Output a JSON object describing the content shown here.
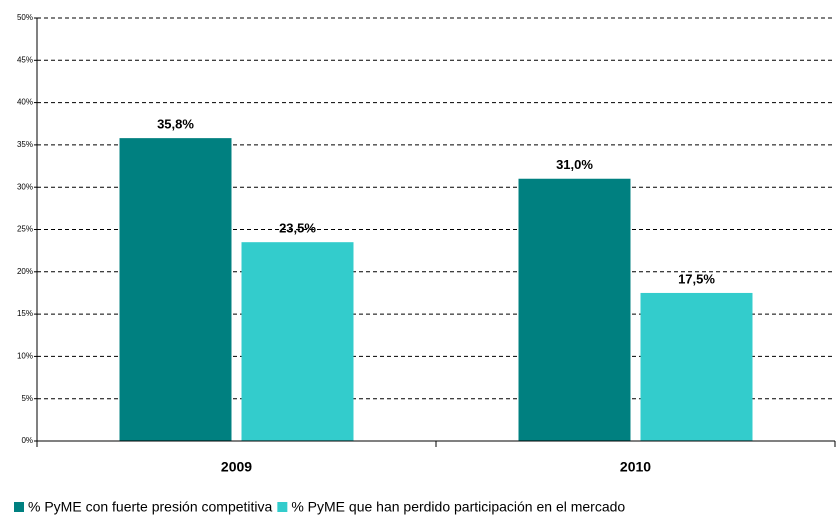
{
  "chart_data": {
    "type": "bar",
    "categories": [
      "2009",
      "2010"
    ],
    "series": [
      {
        "name": "% PyME con fuerte presión competitiva",
        "color": "#008080",
        "values": [
          35.8,
          31.0
        ],
        "value_labels": [
          "35,8%",
          "31,0%"
        ]
      },
      {
        "name": "% PyME que han perdido participación en el mercado",
        "color": "#33CCCC",
        "values": [
          23.5,
          17.5
        ],
        "value_labels": [
          "23,5%",
          "17,5%"
        ]
      }
    ],
    "ylim": [
      0,
      50
    ],
    "yticks": [
      {
        "value": 0,
        "label": "0%"
      },
      {
        "value": 5,
        "label": "5%"
      },
      {
        "value": 10,
        "label": "10%"
      },
      {
        "value": 15,
        "label": "15%"
      },
      {
        "value": 20,
        "label": "20%"
      },
      {
        "value": 25,
        "label": "25%"
      },
      {
        "value": 30,
        "label": "30%"
      },
      {
        "value": 35,
        "label": "35%"
      },
      {
        "value": 40,
        "label": "40%"
      },
      {
        "value": 45,
        "label": "45%"
      },
      {
        "value": 50,
        "label": "50%"
      }
    ],
    "grid": true,
    "legend": "bottom"
  }
}
